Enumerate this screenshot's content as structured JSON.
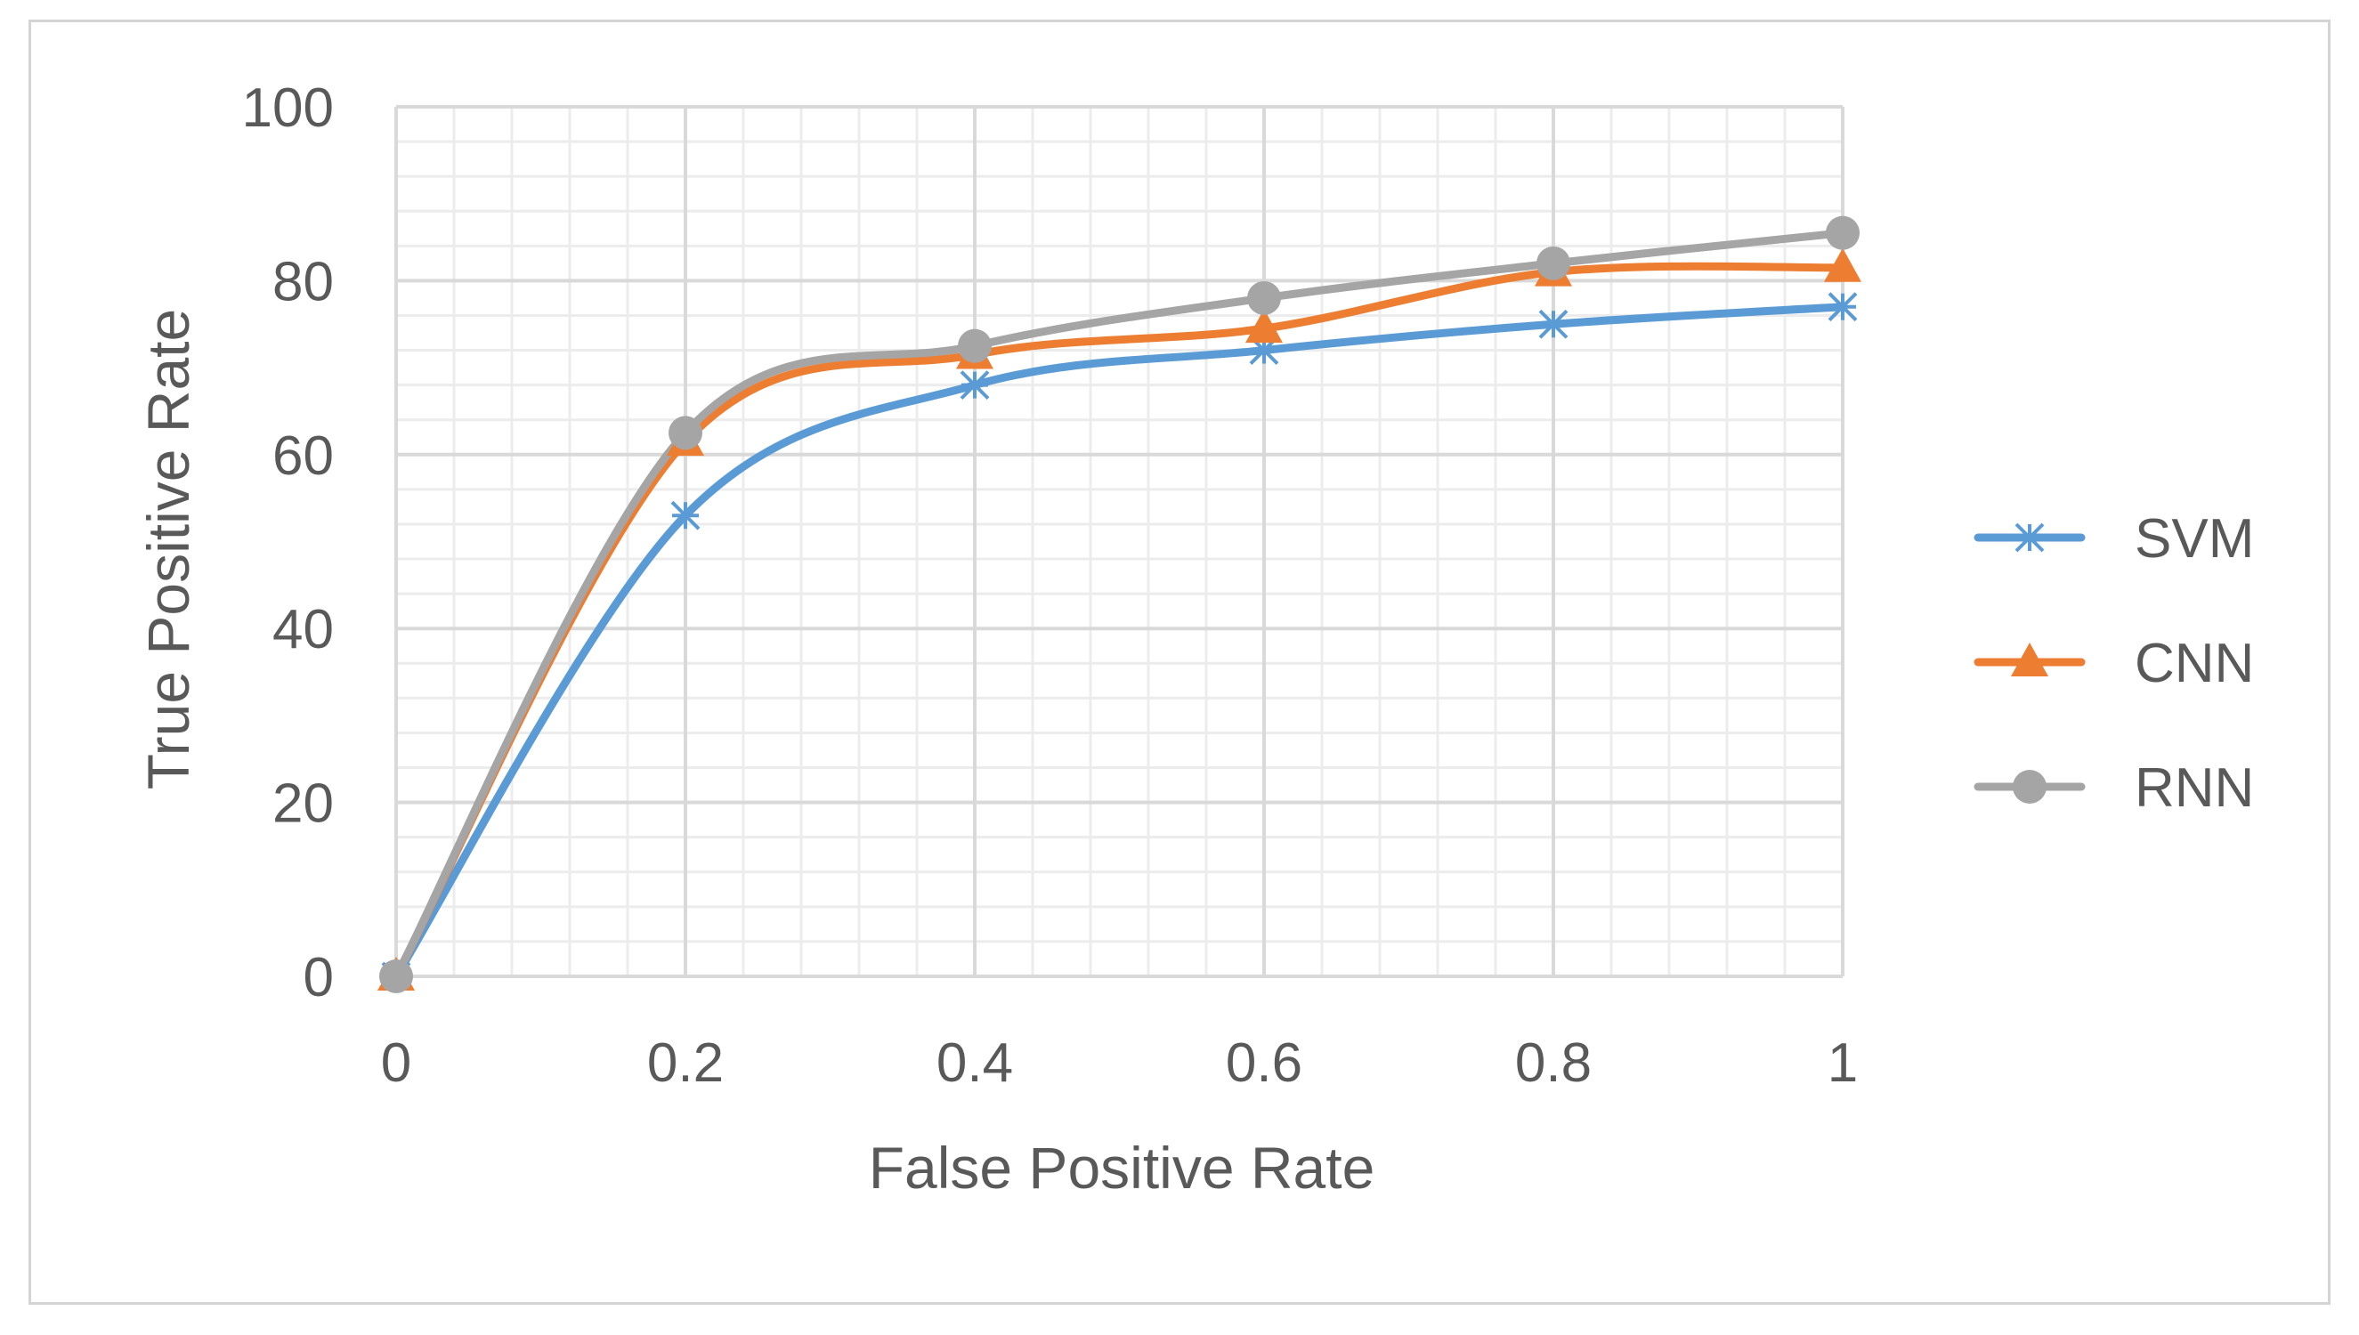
{
  "chart_data": {
    "type": "line",
    "title": "",
    "xlabel": "False Positive Rate",
    "ylabel": "True Positive Rate",
    "x": [
      0,
      0.2,
      0.4,
      0.6,
      0.8,
      1
    ],
    "x_tick_labels": [
      "0",
      "0.2",
      "0.4",
      "0.6",
      "0.8",
      "1"
    ],
    "xlim": [
      0,
      1
    ],
    "ylim": [
      0,
      100
    ],
    "y_ticks": [
      0,
      20,
      40,
      60,
      80,
      100
    ],
    "y_tick_labels": [
      "0",
      "20",
      "40",
      "60",
      "80",
      "100"
    ],
    "grid": true,
    "minor_grid": true,
    "legend_position": "right",
    "series": [
      {
        "name": "SVM",
        "color": "#5B9BD5",
        "marker": "asterisk",
        "values": [
          0,
          53,
          68,
          72,
          75,
          77
        ]
      },
      {
        "name": "CNN",
        "color": "#ED7D31",
        "marker": "triangle",
        "values": [
          0,
          61.5,
          71.5,
          74.5,
          81,
          81.5
        ]
      },
      {
        "name": "RNN",
        "color": "#A5A5A5",
        "marker": "circle",
        "values": [
          0,
          62.5,
          72.5,
          78,
          82,
          85.5
        ]
      }
    ]
  }
}
